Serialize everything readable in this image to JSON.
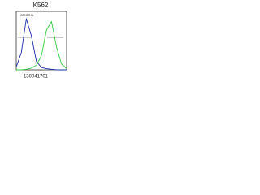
{
  "chart_data": {
    "type": "line",
    "title": "K562",
    "annotation": "CONTROL",
    "caption": "130041701",
    "x": [
      0,
      1,
      2,
      3,
      4,
      5,
      6,
      7,
      8,
      9,
      10
    ],
    "xlim": [
      0,
      10
    ],
    "ylim": [
      0,
      100
    ],
    "series": [
      {
        "name": "CONTROL",
        "color": "#1a2fb0",
        "values": [
          5,
          30,
          90,
          60,
          15,
          4,
          2,
          1,
          0,
          0,
          0
        ]
      },
      {
        "name": "K562",
        "color": "#2ecc40",
        "values": [
          0,
          0,
          1,
          3,
          8,
          25,
          70,
          85,
          40,
          10,
          2
        ]
      }
    ]
  }
}
